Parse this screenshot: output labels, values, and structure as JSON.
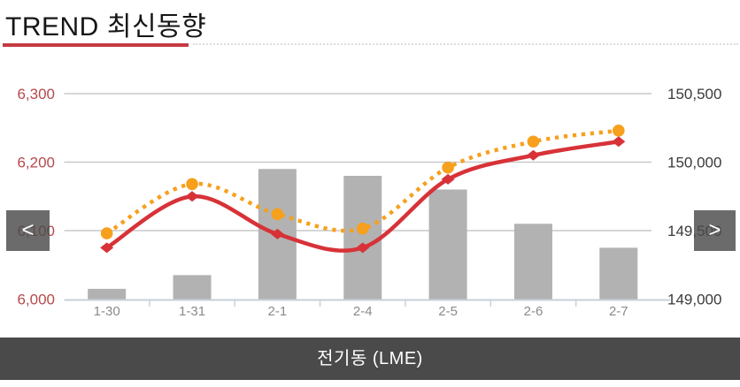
{
  "header": {
    "title_main": "TREND",
    "title_sub": "최신동향",
    "accent_color": "#c53b41"
  },
  "nav": {
    "prev_symbol": "<",
    "next_symbol": ">"
  },
  "footer": {
    "label": "전기동 (LME)",
    "bg_color": "#4a4a4a"
  },
  "chart_data": {
    "type": "bar",
    "subtype": "bar + two smoothed lines (dual axis combo)",
    "title": "전기동 (LME)",
    "categories": [
      "1-30",
      "1-31",
      "2-1",
      "2-4",
      "2-5",
      "2-6",
      "2-7"
    ],
    "series": [
      {
        "name": "volume-bars",
        "type": "bar",
        "axis": "left",
        "color": "#b2b2b2",
        "values": [
          6015,
          6035,
          6190,
          6180,
          6160,
          6110,
          6075
        ]
      },
      {
        "name": "price-solid",
        "type": "line",
        "line_style": "solid",
        "marker": "diamond",
        "axis": "left",
        "color": "#d73238",
        "values": [
          6075,
          6150,
          6095,
          6075,
          6175,
          6210,
          6230
        ]
      },
      {
        "name": "price-dotted",
        "type": "line",
        "line_style": "dotted",
        "marker": "circle",
        "axis": "right",
        "color": "#f6a01d",
        "values": [
          149480,
          149840,
          149620,
          149515,
          149960,
          150150,
          150230
        ]
      }
    ],
    "left_axis": {
      "min": 6000,
      "max": 6300,
      "tick_labels": [
        "6,000",
        "6,100",
        "6,200",
        "6,300"
      ],
      "label_color": "#b6494c"
    },
    "right_axis": {
      "min": 149000,
      "max": 150500,
      "tick_labels": [
        "149,000",
        "149,500",
        "150,000",
        "150,500"
      ],
      "label_color": "#3a3a3a"
    },
    "x_axis": {
      "label_color": "#8a8a8a",
      "line_color": "#c7d0d9"
    },
    "grid_color": "#c9c9c9",
    "grid": "on",
    "legend": "none"
  }
}
